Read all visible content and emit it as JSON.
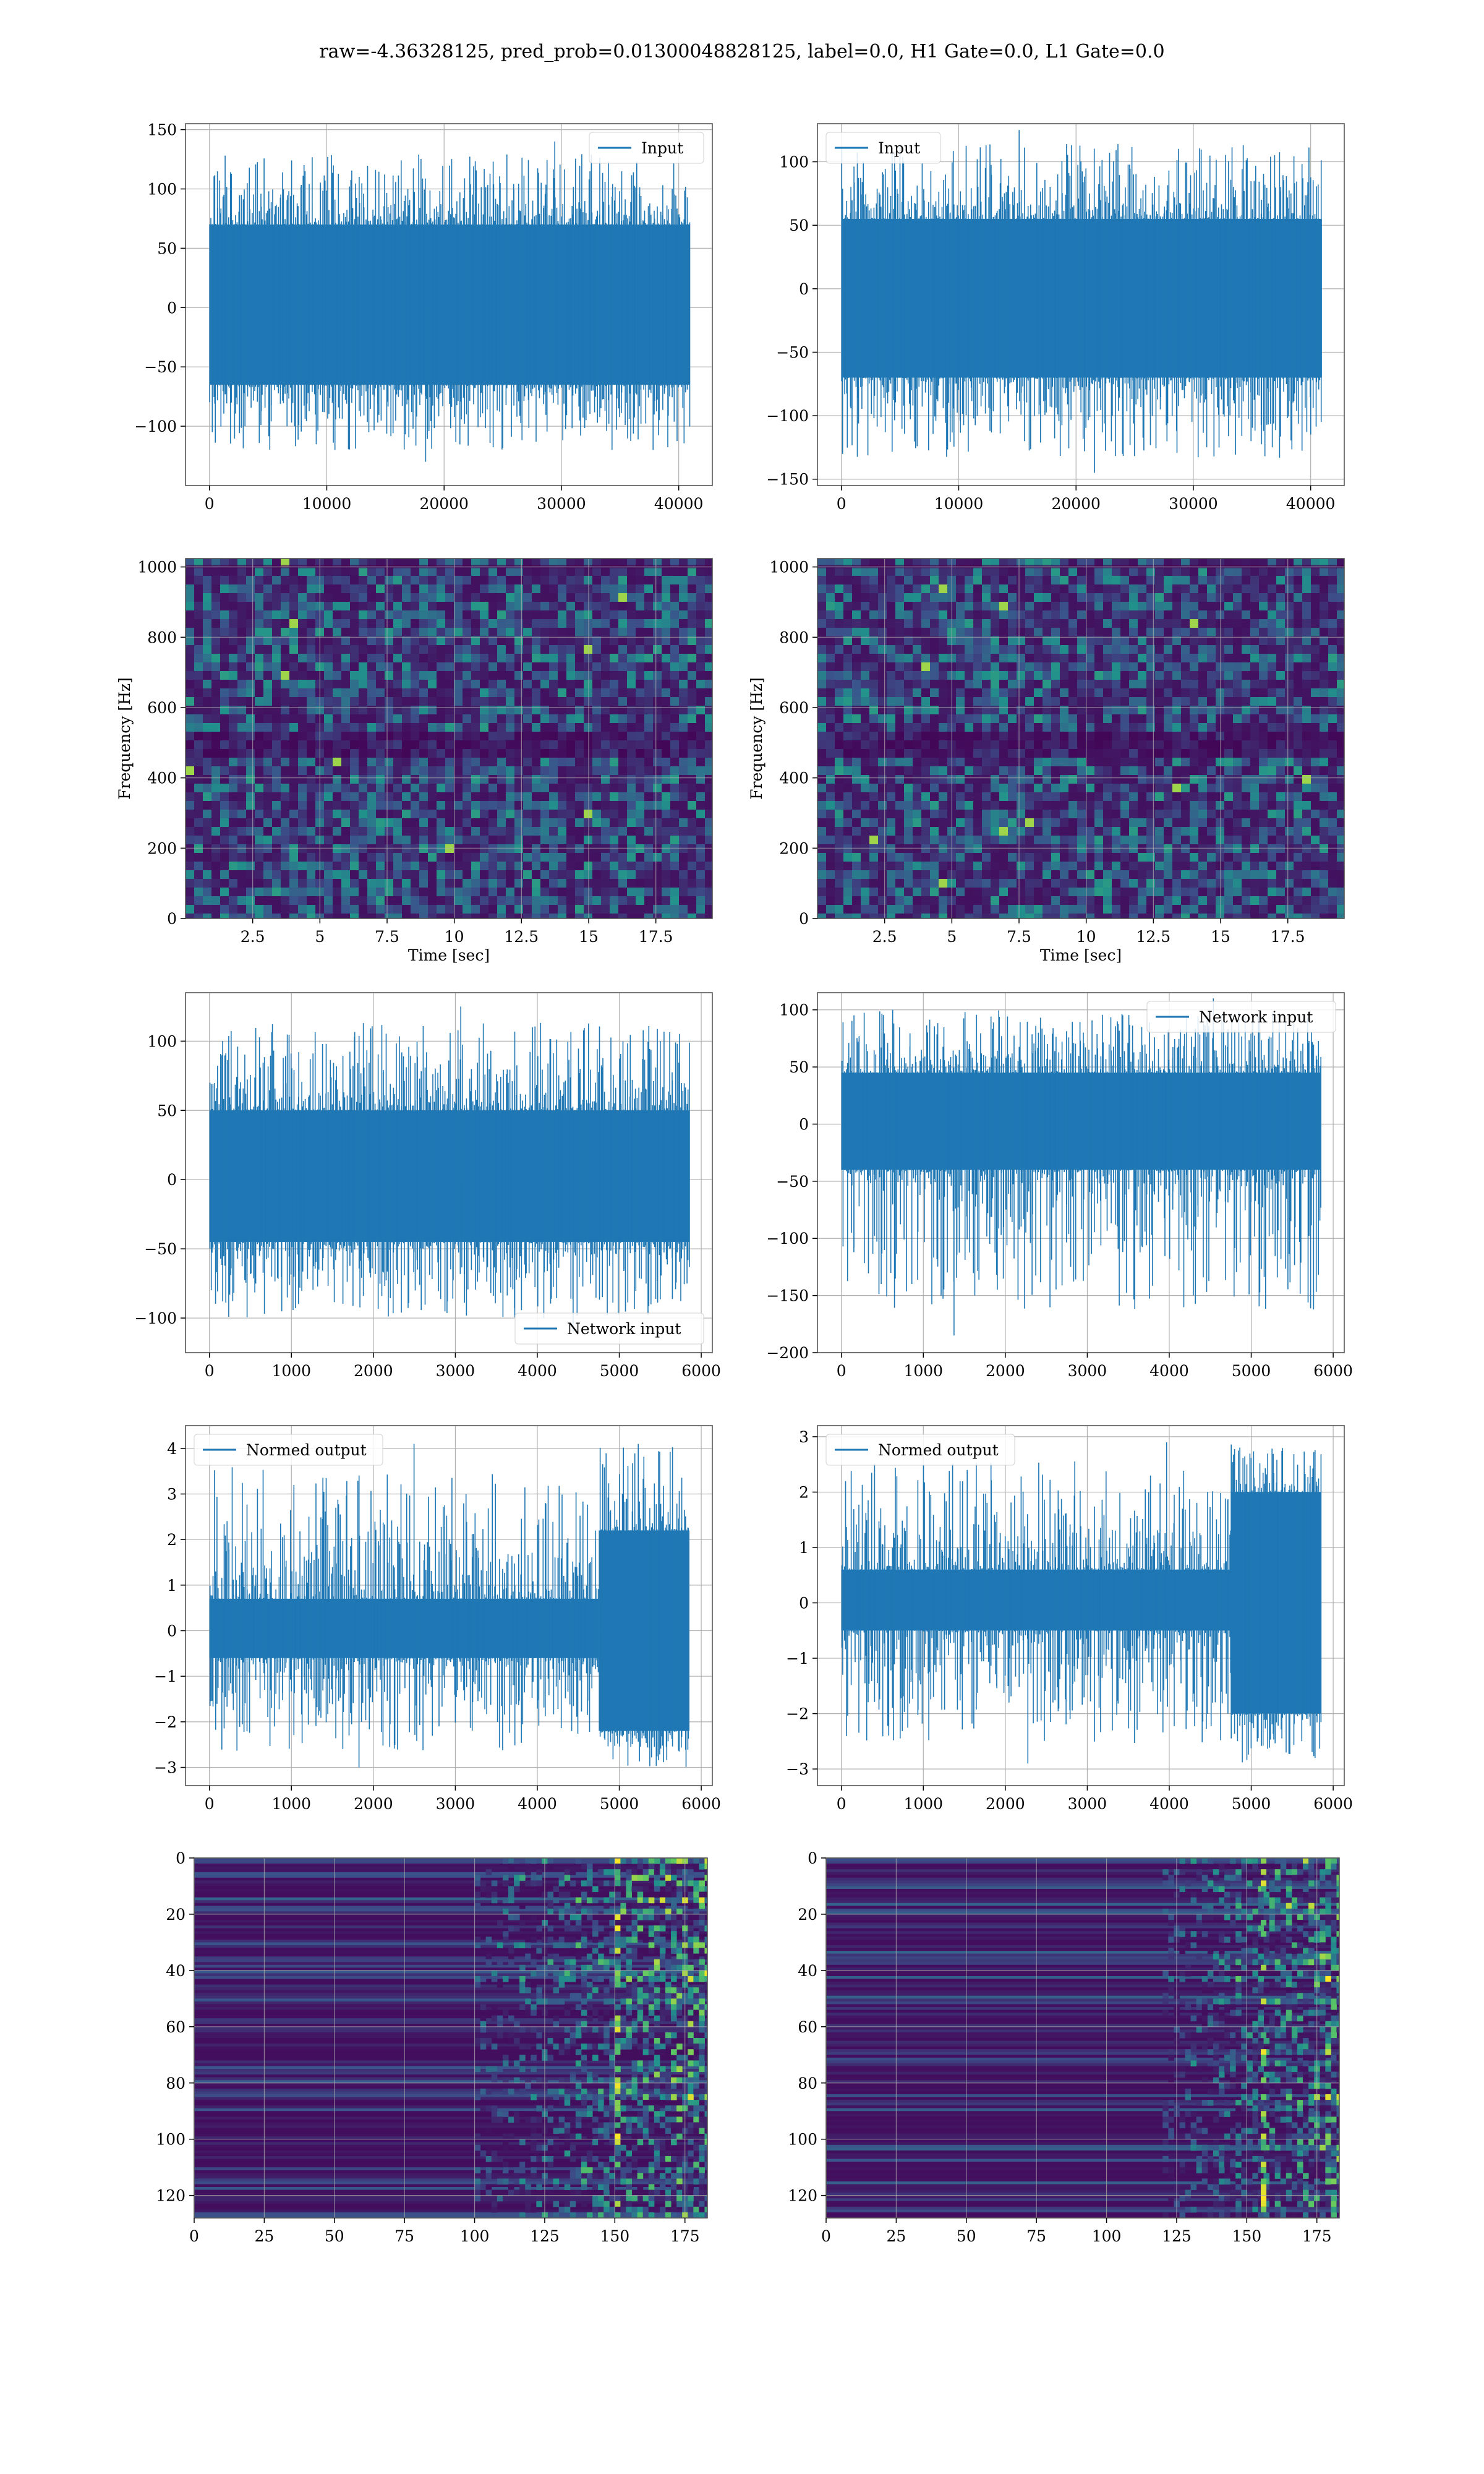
{
  "figure_title": "raw=-4.36328125, pred_prob=0.01300048828125, label=0.0, H1 Gate=0.0, L1 Gate=0.0",
  "colors": {
    "series": "#1f77b4",
    "grid": "#b0b0b0"
  },
  "chart_data": [
    {
      "type": "line",
      "panel": "row1-left",
      "legend": "Input",
      "legend_loc": "upper right",
      "xticks": [
        0,
        10000,
        20000,
        30000,
        40000
      ],
      "yticks": [
        -100,
        -50,
        0,
        50,
        100,
        150
      ],
      "xlim": [
        -2042,
        42863
      ],
      "ylim": [
        -150,
        155
      ],
      "n_points": 40960,
      "grid": true,
      "envelope": {
        "core_lower": -65,
        "core_upper": 70,
        "spike_min": -130,
        "spike_max": 140
      }
    },
    {
      "type": "line",
      "panel": "row1-right",
      "legend": "Input",
      "legend_loc": "upper left",
      "xticks": [
        0,
        10000,
        20000,
        30000,
        40000
      ],
      "yticks": [
        -150,
        -100,
        -50,
        0,
        50,
        100
      ],
      "xlim": [
        -2042,
        42863
      ],
      "ylim": [
        -155,
        130
      ],
      "n_points": 40960,
      "grid": true,
      "envelope": {
        "core_lower": -70,
        "core_upper": 55,
        "spike_min": -145,
        "spike_max": 125
      }
    },
    {
      "type": "heatmap",
      "panel": "row2-left",
      "colormap": "viridis",
      "xlabel": "Time [sec]",
      "ylabel": "Frequency [Hz]",
      "xticks": [
        2.5,
        5.0,
        7.5,
        10.0,
        12.5,
        15.0,
        17.5
      ],
      "yticks": [
        0,
        200,
        400,
        600,
        800,
        1000
      ],
      "xlim": [
        0,
        19.6
      ],
      "ylim": [
        0,
        1024
      ],
      "grid": true,
      "dark_band_hz": [
        500,
        1000
      ]
    },
    {
      "type": "heatmap",
      "panel": "row2-right",
      "colormap": "viridis",
      "xlabel": "Time [sec]",
      "ylabel": "Frequency [Hz]",
      "xticks": [
        2.5,
        5.0,
        7.5,
        10.0,
        12.5,
        15.0,
        17.5
      ],
      "yticks": [
        0,
        200,
        400,
        600,
        800,
        1000
      ],
      "xlim": [
        0,
        19.6
      ],
      "ylim": [
        0,
        1024
      ],
      "grid": true,
      "dark_band_hz": [
        500,
        1000
      ]
    },
    {
      "type": "line",
      "panel": "row3-left",
      "legend": "Network input",
      "legend_loc": "lower right",
      "xticks": [
        0,
        1000,
        2000,
        3000,
        4000,
        5000,
        6000
      ],
      "yticks": [
        -100,
        -50,
        0,
        50,
        100
      ],
      "xlim": [
        -292,
        6135
      ],
      "ylim": [
        -125,
        135
      ],
      "n_points": 5856,
      "grid": true,
      "envelope": {
        "core_lower": -45,
        "core_upper": 50,
        "spike_min": -110,
        "spike_max": 125
      }
    },
    {
      "type": "line",
      "panel": "row3-right",
      "legend": "Network input",
      "legend_loc": "upper right",
      "xticks": [
        0,
        1000,
        2000,
        3000,
        4000,
        5000,
        6000
      ],
      "yticks": [
        -200,
        -150,
        -100,
        -50,
        0,
        50,
        100
      ],
      "xlim": [
        -292,
        6135
      ],
      "ylim": [
        -200,
        115
      ],
      "n_points": 5856,
      "grid": true,
      "envelope": {
        "core_lower": -40,
        "core_upper": 45,
        "spike_min": -185,
        "spike_max": 110
      }
    },
    {
      "type": "line",
      "panel": "row4-left",
      "legend": "Normed output",
      "legend_loc": "upper left",
      "xticks": [
        0,
        1000,
        2000,
        3000,
        4000,
        5000,
        6000
      ],
      "yticks": [
        -3,
        -2,
        -1,
        0,
        1,
        2,
        3,
        4
      ],
      "xlim": [
        -292,
        6135
      ],
      "ylim": [
        -3.4,
        4.5
      ],
      "n_points": 5856,
      "grid": true,
      "envelope": {
        "core_lower": -0.6,
        "core_upper": 0.7,
        "spike_min": -3.0,
        "spike_max": 4.1,
        "burst_start": 4750,
        "burst_lower": -2.2,
        "burst_upper": 2.2
      }
    },
    {
      "type": "line",
      "panel": "row4-right",
      "legend": "Normed output",
      "legend_loc": "upper left",
      "xticks": [
        0,
        1000,
        2000,
        3000,
        4000,
        5000,
        6000
      ],
      "yticks": [
        -3,
        -2,
        -1,
        0,
        1,
        2,
        3
      ],
      "xlim": [
        -292,
        6135
      ],
      "ylim": [
        -3.3,
        3.2
      ],
      "n_points": 5856,
      "grid": true,
      "envelope": {
        "core_lower": -0.5,
        "core_upper": 0.6,
        "spike_min": -2.9,
        "spike_max": 2.9,
        "burst_start": 4750,
        "burst_lower": -2.0,
        "burst_upper": 2.0
      }
    },
    {
      "type": "heatmap",
      "panel": "row5-left",
      "colormap": "viridis",
      "xticks": [
        0,
        25,
        50,
        75,
        100,
        125,
        150,
        175
      ],
      "yticks": [
        0,
        20,
        40,
        60,
        80,
        100,
        120
      ],
      "xlim": [
        0,
        183
      ],
      "ylim": [
        128,
        0
      ],
      "grid": true,
      "activity_onset": 100,
      "hot_column": 150
    },
    {
      "type": "heatmap",
      "panel": "row5-right",
      "colormap": "viridis",
      "xticks": [
        0,
        25,
        50,
        75,
        100,
        125,
        150,
        175
      ],
      "yticks": [
        0,
        20,
        40,
        60,
        80,
        100,
        120
      ],
      "xlim": [
        0,
        183
      ],
      "ylim": [
        128,
        0
      ],
      "grid": true,
      "activity_onset": 120,
      "hot_column": 155
    }
  ]
}
